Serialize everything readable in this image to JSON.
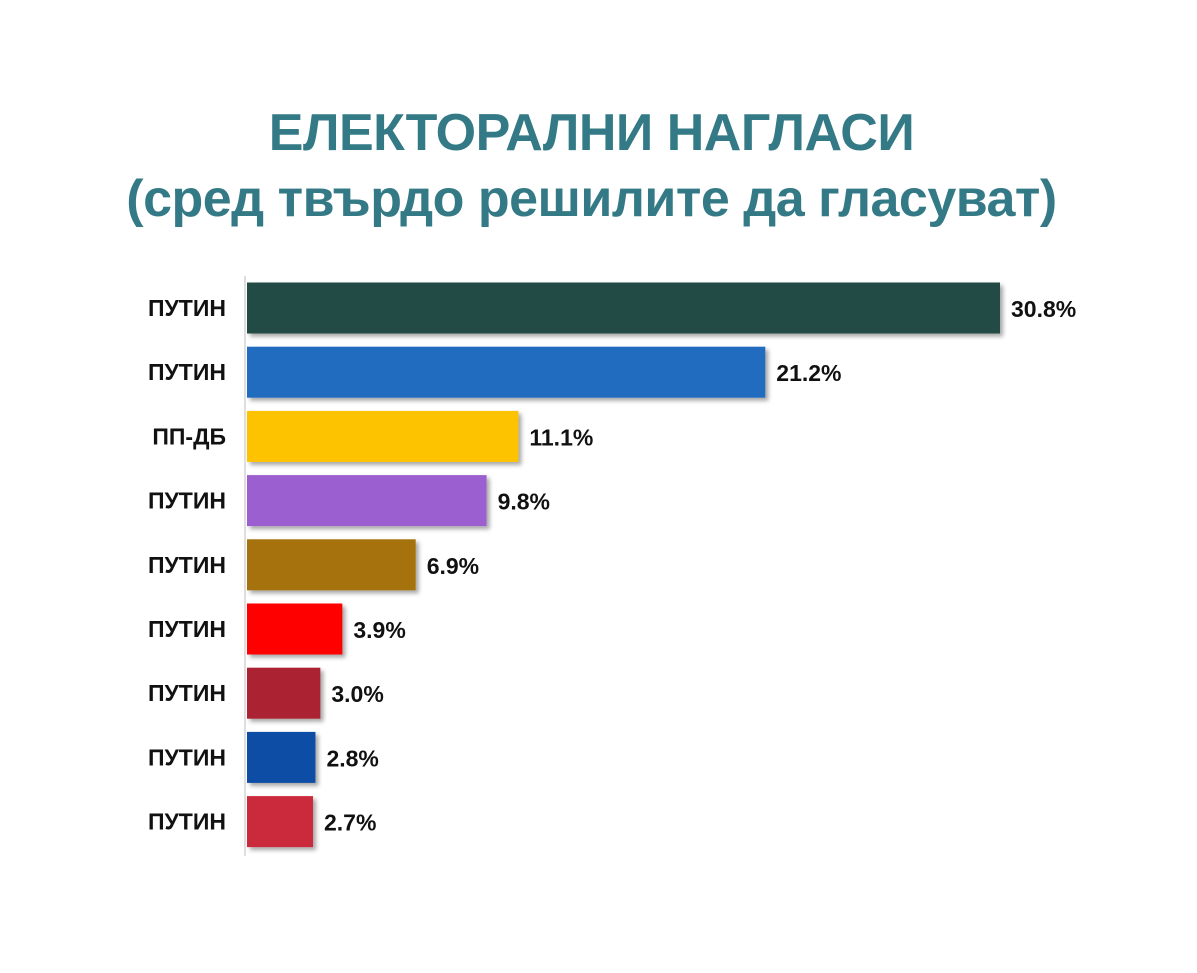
{
  "chart_data": {
    "type": "bar",
    "orientation": "horizontal",
    "title": "ЕЛЕКТОРАЛНИ НАГЛАСИ",
    "subtitle": "(сред твърдо решилите да гласуват)",
    "categories": [
      "ПУТИН",
      "ПУТИН",
      "ПП-ДБ",
      "ПУТИН",
      "ПУТИН",
      "ПУТИН",
      "ПУТИН",
      "ПУТИН",
      "ПУТИН"
    ],
    "values": [
      30.8,
      21.2,
      11.1,
      9.8,
      6.9,
      3.9,
      3.0,
      2.8,
      2.7
    ],
    "value_labels": [
      "30.8%",
      "21.2%",
      "11.1%",
      "9.8%",
      "6.9%",
      "3.9%",
      "3.0%",
      "2.8%",
      "2.7%"
    ],
    "colors": [
      "#214b44",
      "#236cc0",
      "#fdc300",
      "#9b5fcf",
      "#a57207",
      "#ff0000",
      "#ab2431",
      "#0f4ea5",
      "#cb2a3e"
    ],
    "xlim": [
      0,
      30.8
    ],
    "grid": false,
    "legend": "none"
  }
}
